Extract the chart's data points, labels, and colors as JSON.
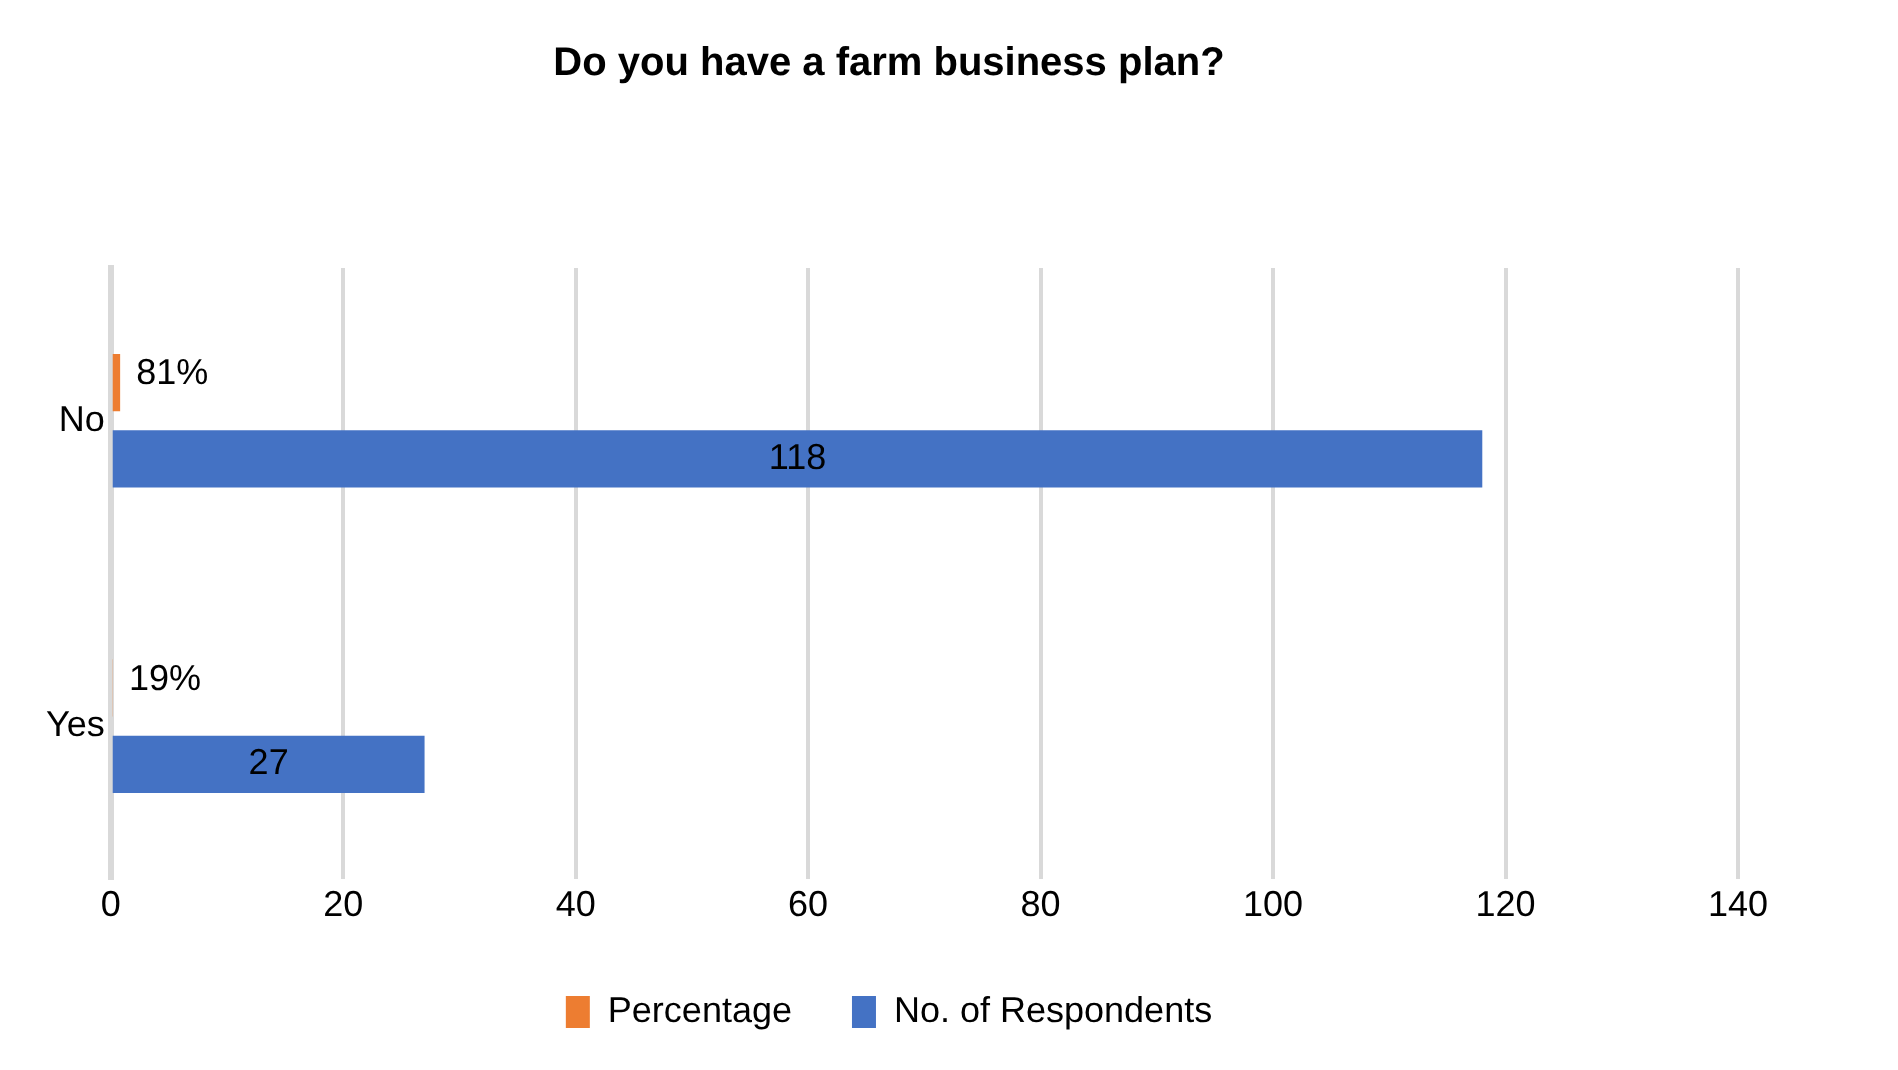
{
  "chart_data": {
    "type": "bar",
    "orientation": "horizontal",
    "title": "Do you have a farm business plan?",
    "categories": [
      "No",
      "Yes"
    ],
    "series": [
      {
        "name": "Percentage",
        "color": "#ed7d31",
        "values": [
          0.81,
          0.19
        ],
        "value_labels": [
          "81%",
          "19%"
        ]
      },
      {
        "name": "No. of Respondents",
        "color": "#4472c4",
        "values": [
          118,
          27
        ],
        "value_labels": [
          "118",
          "27"
        ]
      }
    ],
    "xlim": [
      0,
      140
    ],
    "xticks": [
      0,
      20,
      40,
      60,
      80,
      100,
      120,
      140
    ],
    "grid": "x",
    "legend": "bottom"
  }
}
